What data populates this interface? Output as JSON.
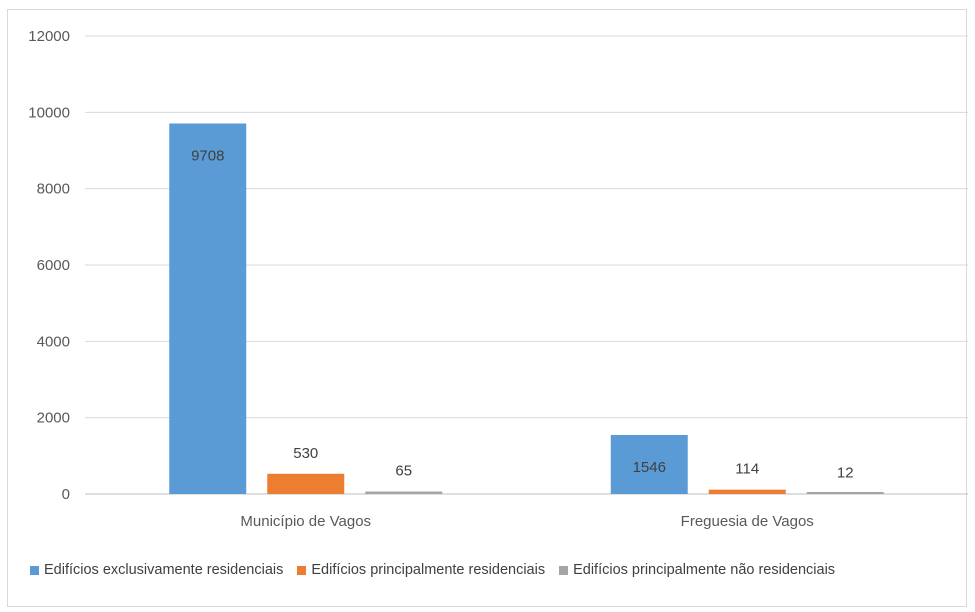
{
  "chart_data": {
    "type": "bar",
    "categories": [
      "Município de Vagos",
      "Freguesia de Vagos"
    ],
    "series": [
      {
        "name": "Edifícios exclusivamente residenciais",
        "color": "#5b9bd5",
        "values": [
          9708,
          1546
        ],
        "labels": [
          "9708",
          "1546"
        ]
      },
      {
        "name": "Edifícios principalmente residenciais",
        "color": "#ed7d31",
        "values": [
          530,
          114
        ],
        "labels": [
          "530",
          "114"
        ]
      },
      {
        "name": "Edifícios principalmente não residenciais",
        "color": "#a5a5a5",
        "values": [
          65,
          12
        ],
        "labels": [
          "65",
          "12"
        ]
      }
    ],
    "ylim": [
      0,
      12000
    ],
    "yticks": [
      "0",
      "2000",
      "4000",
      "6000",
      "8000",
      "10000",
      "12000"
    ],
    "ytick_values": [
      0,
      2000,
      4000,
      6000,
      8000,
      10000,
      12000
    ],
    "grid": true,
    "legend_position": "bottom-left",
    "title": "",
    "xlabel": "",
    "ylabel": ""
  }
}
